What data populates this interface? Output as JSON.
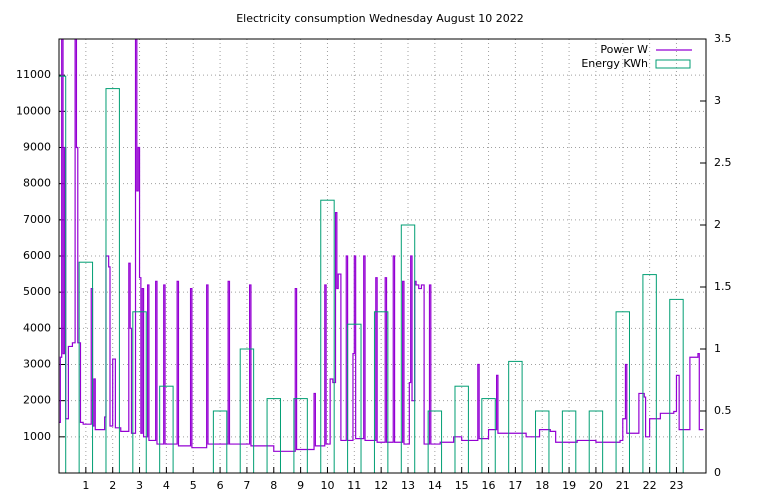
{
  "chart_data": {
    "type": "line",
    "title": "Electricity consumption Wednesday August 10 2022",
    "xlim": [
      0,
      24.1
    ],
    "xticks": [
      1,
      2,
      3,
      4,
      5,
      6,
      7,
      8,
      9,
      10,
      11,
      12,
      13,
      14,
      15,
      16,
      17,
      18,
      19,
      20,
      21,
      22,
      23
    ],
    "ylim": [
      0,
      12000
    ],
    "yticks": [
      1000,
      2000,
      3000,
      4000,
      5000,
      6000,
      7000,
      8000,
      9000,
      10000,
      11000
    ],
    "y2lim": [
      0,
      3.5
    ],
    "y2ticks": [
      0,
      0.5,
      1,
      1.5,
      2,
      2.5,
      3,
      3.5
    ],
    "grid": true,
    "legend": "top-right",
    "series": [
      {
        "name": "Power W",
        "color": "#9400d3",
        "style": "steps",
        "x": [
          0,
          0.05,
          0.1,
          0.15,
          0.2,
          0.25,
          0.35,
          0.5,
          0.6,
          0.65,
          0.7,
          0.8,
          0.9,
          1.2,
          1.25,
          1.3,
          1.35,
          1.7,
          1.75,
          1.85,
          1.9,
          2.0,
          2.1,
          2.3,
          2.6,
          2.65,
          2.7,
          2.85,
          2.9,
          2.95,
          3.0,
          3.05,
          3.1,
          3.15,
          3.3,
          3.35,
          3.6,
          3.65,
          3.9,
          3.95,
          4.4,
          4.45,
          4.9,
          4.95,
          5.5,
          5.55,
          6.3,
          6.35,
          7.1,
          7.15,
          8.0,
          8.8,
          8.85,
          9.5,
          9.55,
          9.9,
          9.95,
          10.1,
          10.2,
          10.3,
          10.35,
          10.4,
          10.5,
          10.7,
          10.75,
          10.95,
          11.0,
          11.05,
          11.35,
          11.4,
          11.8,
          11.85,
          12.15,
          12.2,
          12.45,
          12.5,
          12.8,
          12.85,
          13.05,
          13.1,
          13.15,
          13.25,
          13.3,
          13.4,
          13.5,
          13.6,
          13.8,
          13.85,
          14.2,
          14.7,
          15.0,
          15.6,
          15.65,
          16.0,
          16.3,
          16.35,
          17.4,
          17.9,
          18.3,
          18.5,
          19.3,
          20.0,
          20.9,
          21.0,
          21.1,
          21.15,
          21.4,
          21.6,
          21.8,
          21.85,
          22.0,
          22.4,
          22.9,
          23.0,
          23.1,
          23.5,
          23.8,
          23.85,
          24
        ],
        "values": [
          1400,
          3200,
          12000,
          3300,
          9000,
          1500,
          3500,
          3600,
          12000,
          9000,
          3600,
          1400,
          1350,
          5100,
          1300,
          2600,
          1200,
          1550,
          6000,
          5700,
          1300,
          3150,
          1250,
          1150,
          5800,
          4000,
          1100,
          12000,
          7800,
          9000,
          5400,
          1100,
          5100,
          1000,
          5200,
          900,
          5300,
          800,
          5200,
          800,
          5300,
          750,
          5100,
          700,
          5200,
          800,
          5300,
          800,
          5200,
          750,
          600,
          5100,
          650,
          2200,
          750,
          5200,
          800,
          2600,
          2500,
          7200,
          5100,
          5500,
          900,
          6000,
          900,
          3300,
          6000,
          950,
          6000,
          900,
          5400,
          850,
          5400,
          850,
          6000,
          850,
          5300,
          800,
          2500,
          6000,
          2000,
          5300,
          5200,
          5100,
          5200,
          800,
          5200,
          800,
          850,
          1000,
          900,
          3000,
          950,
          1200,
          2700,
          1100,
          1000,
          1200,
          1150,
          850,
          900,
          850,
          900,
          1500,
          3000,
          1100,
          1100,
          2200,
          2100,
          1000,
          1500,
          1650,
          1700,
          2700,
          1200,
          3200,
          3300,
          1200,
          1200
        ]
      },
      {
        "name": "Energy KWh",
        "color": "#009e73",
        "style": "boxes",
        "axis": "y2",
        "x": [
          0,
          1,
          2,
          3,
          4,
          5,
          6,
          7,
          8,
          9,
          10,
          11,
          12,
          13,
          14,
          15,
          16,
          17,
          18,
          19,
          20,
          21,
          22,
          23
        ],
        "values": [
          3.2,
          1.7,
          3.1,
          1.3,
          0.7,
          0,
          0.5,
          1.0,
          0.6,
          0.6,
          2.2,
          1.2,
          1.3,
          2.0,
          0.5,
          0.7,
          0.6,
          0.9,
          0.5,
          0.5,
          0.5,
          1.3,
          1.6,
          1.4
        ]
      }
    ]
  }
}
